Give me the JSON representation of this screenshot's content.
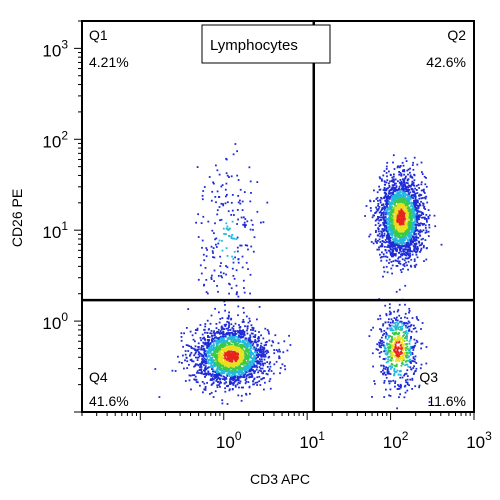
{
  "chart_data": {
    "type": "scatter",
    "title": "Lymphocytes",
    "xlabel": "CD3 APC",
    "ylabel": "CD26 PE",
    "xscale": "log",
    "yscale": "log",
    "xlim": [
      0.02,
      1000
    ],
    "ylim": [
      0.1,
      2000
    ],
    "x_ticks": [
      {
        "base": "10",
        "exp": "0",
        "value": 1
      },
      {
        "base": "10",
        "exp": "1",
        "value": 10
      },
      {
        "base": "10",
        "exp": "2",
        "value": 100
      },
      {
        "base": "10",
        "exp": "3",
        "value": 1000
      }
    ],
    "y_ticks": [
      {
        "base": "10",
        "exp": "0",
        "value": 1
      },
      {
        "base": "10",
        "exp": "1",
        "value": 10
      },
      {
        "base": "10",
        "exp": "2",
        "value": 100
      },
      {
        "base": "10",
        "exp": "3",
        "value": 1000
      }
    ],
    "quadrant_gate": {
      "x": 12,
      "y": 1.7
    },
    "quadrants": [
      {
        "name": "Q1",
        "percent": "4.21%",
        "position": "top-left"
      },
      {
        "name": "Q2",
        "percent": "42.6%",
        "position": "top-right"
      },
      {
        "name": "Q3",
        "percent": "11.6%",
        "position": "bottom-right"
      },
      {
        "name": "Q4",
        "percent": "41.6%",
        "position": "bottom-left"
      }
    ],
    "populations": [
      {
        "label": "Q4 cluster",
        "center_x": 1.2,
        "center_y": 0.42,
        "spread_log_x": 0.22,
        "spread_log_y": 0.16,
        "share": 0.416
      },
      {
        "label": "Q2 cluster",
        "center_x": 130,
        "center_y": 14,
        "spread_log_x": 0.13,
        "spread_log_y": 0.22,
        "share": 0.426
      },
      {
        "label": "Q3 cluster",
        "center_x": 120,
        "center_y": 0.5,
        "spread_log_x": 0.12,
        "spread_log_y": 0.22,
        "share": 0.116
      },
      {
        "label": "Q1 cluster",
        "center_x": 1.1,
        "center_y": 8,
        "spread_log_x": 0.18,
        "spread_log_y": 0.45,
        "share": 0.042
      }
    ],
    "colors": {
      "density_low": "#1f2bd6",
      "density_mid": "#22b8e0",
      "density_midhigh": "#3cc94a",
      "density_high": "#e8e020",
      "density_peak": "#e8241e",
      "axes": "#000000",
      "gate_lines": "#000000"
    },
    "grid": false,
    "legend": "none"
  }
}
